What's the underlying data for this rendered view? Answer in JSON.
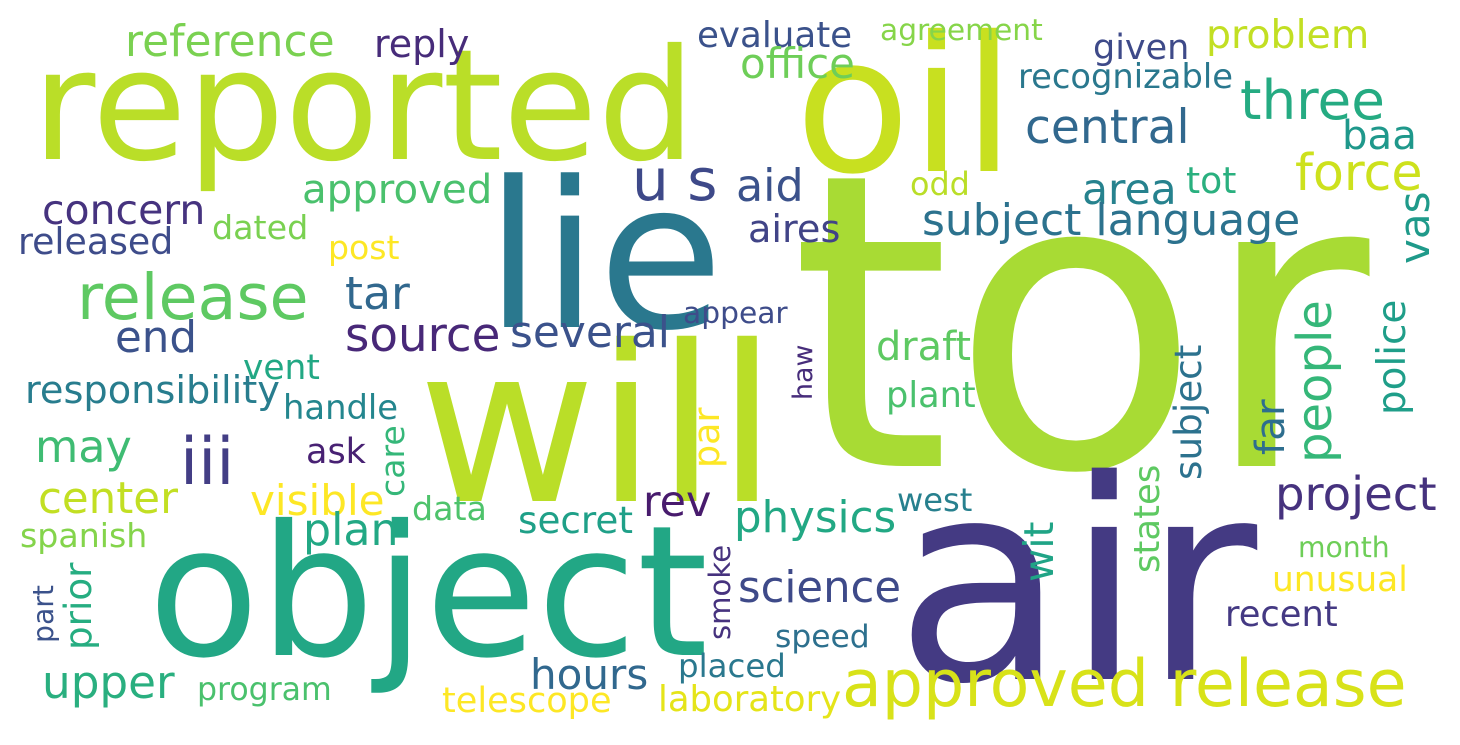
{
  "words": [
    {
      "text": "tor",
      "color": "#a8db34"
    },
    {
      "text": "air",
      "color": "#443a83"
    },
    {
      "text": "object",
      "color": "#22a785"
    },
    {
      "text": "will",
      "color": "#bade28"
    },
    {
      "text": "lie",
      "color": "#2a788e"
    },
    {
      "text": "reported",
      "color": "#bade28"
    },
    {
      "text": "oil",
      "color": "#c8e020"
    },
    {
      "text": "approved release",
      "color": "#d8e219"
    },
    {
      "text": "release",
      "color": "#5ec962"
    },
    {
      "text": "may",
      "color": "#3fbc73"
    },
    {
      "text": "upper",
      "color": "#29af7f"
    },
    {
      "text": "center",
      "color": "#c2df23"
    },
    {
      "text": "iii",
      "color": "#433e85"
    },
    {
      "text": "end",
      "color": "#3b528b"
    },
    {
      "text": "source",
      "color": "#482878"
    },
    {
      "text": "several",
      "color": "#3b528b"
    },
    {
      "text": "tar",
      "color": "#31688e"
    },
    {
      "text": "approved",
      "color": "#4ac16d"
    },
    {
      "text": "concern",
      "color": "#46337f"
    },
    {
      "text": "released",
      "color": "#3e4c8a"
    },
    {
      "text": "dated",
      "color": "#7ad151"
    },
    {
      "text": "post",
      "color": "#fde725"
    },
    {
      "text": "reference",
      "color": "#7ad151"
    },
    {
      "text": "reply",
      "color": "#472c7a"
    },
    {
      "text": "evaluate",
      "color": "#3b528b"
    },
    {
      "text": "office",
      "color": "#6ece58"
    },
    {
      "text": "agreement",
      "color": "#86d549"
    },
    {
      "text": "given",
      "color": "#3e4a89"
    },
    {
      "text": "problem",
      "color": "#c2df23"
    },
    {
      "text": "recognizable",
      "color": "#2a788e"
    },
    {
      "text": "three",
      "color": "#25ab82"
    },
    {
      "text": "central",
      "color": "#31688e"
    },
    {
      "text": "baa",
      "color": "#1f988b"
    },
    {
      "text": "force",
      "color": "#cde11d"
    },
    {
      "text": "u s",
      "color": "#3e4989"
    },
    {
      "text": "aid",
      "color": "#3b528b"
    },
    {
      "text": "area",
      "color": "#26828e"
    },
    {
      "text": "tot",
      "color": "#2ab07f"
    },
    {
      "text": "odd",
      "color": "#bade28"
    },
    {
      "text": "subject language",
      "color": "#2c728e"
    },
    {
      "text": "vas",
      "color": "#1f9a8a"
    },
    {
      "text": "aires",
      "color": "#414487"
    },
    {
      "text": "appear",
      "color": "#3e4c8a"
    },
    {
      "text": "people",
      "color": "#35b779"
    },
    {
      "text": "police",
      "color": "#1f9e89"
    },
    {
      "text": "draft",
      "color": "#5ec962"
    },
    {
      "text": "plant",
      "color": "#4ac16d"
    },
    {
      "text": "haw",
      "color": "#472d7b"
    },
    {
      "text": "subject",
      "color": "#2c728e"
    },
    {
      "text": "far",
      "color": "#2e6e8e"
    },
    {
      "text": "vent",
      "color": "#22a884"
    },
    {
      "text": "responsibility",
      "color": "#287d8e"
    },
    {
      "text": "handle",
      "color": "#24868e"
    },
    {
      "text": "ask",
      "color": "#482173"
    },
    {
      "text": "care",
      "color": "#35b779"
    },
    {
      "text": "par",
      "color": "#fde725"
    },
    {
      "text": "visible",
      "color": "#fde725"
    },
    {
      "text": "data",
      "color": "#4ec36b"
    },
    {
      "text": "plan",
      "color": "#22a884"
    },
    {
      "text": "spanish",
      "color": "#84d44b"
    },
    {
      "text": "part",
      "color": "#3b528b"
    },
    {
      "text": "prior",
      "color": "#26ad81"
    },
    {
      "text": "rev",
      "color": "#481b6d"
    },
    {
      "text": "physics",
      "color": "#22a884"
    },
    {
      "text": "west",
      "color": "#27808e"
    },
    {
      "text": "project",
      "color": "#46327e"
    },
    {
      "text": "secret",
      "color": "#1fa088"
    },
    {
      "text": "science",
      "color": "#3e4a89"
    },
    {
      "text": "smoke",
      "color": "#46327e"
    },
    {
      "text": "states",
      "color": "#5ec962"
    },
    {
      "text": "wit",
      "color": "#20a486"
    },
    {
      "text": "month",
      "color": "#6ece58"
    },
    {
      "text": "unusual",
      "color": "#fde725"
    },
    {
      "text": "recent",
      "color": "#443983"
    },
    {
      "text": "speed",
      "color": "#2d708e"
    },
    {
      "text": "hours",
      "color": "#31688e"
    },
    {
      "text": "placed",
      "color": "#2a788e"
    },
    {
      "text": "program",
      "color": "#4ac16d"
    },
    {
      "text": "telescope",
      "color": "#fde725"
    },
    {
      "text": "laboratory",
      "color": "#e5e419"
    }
  ]
}
